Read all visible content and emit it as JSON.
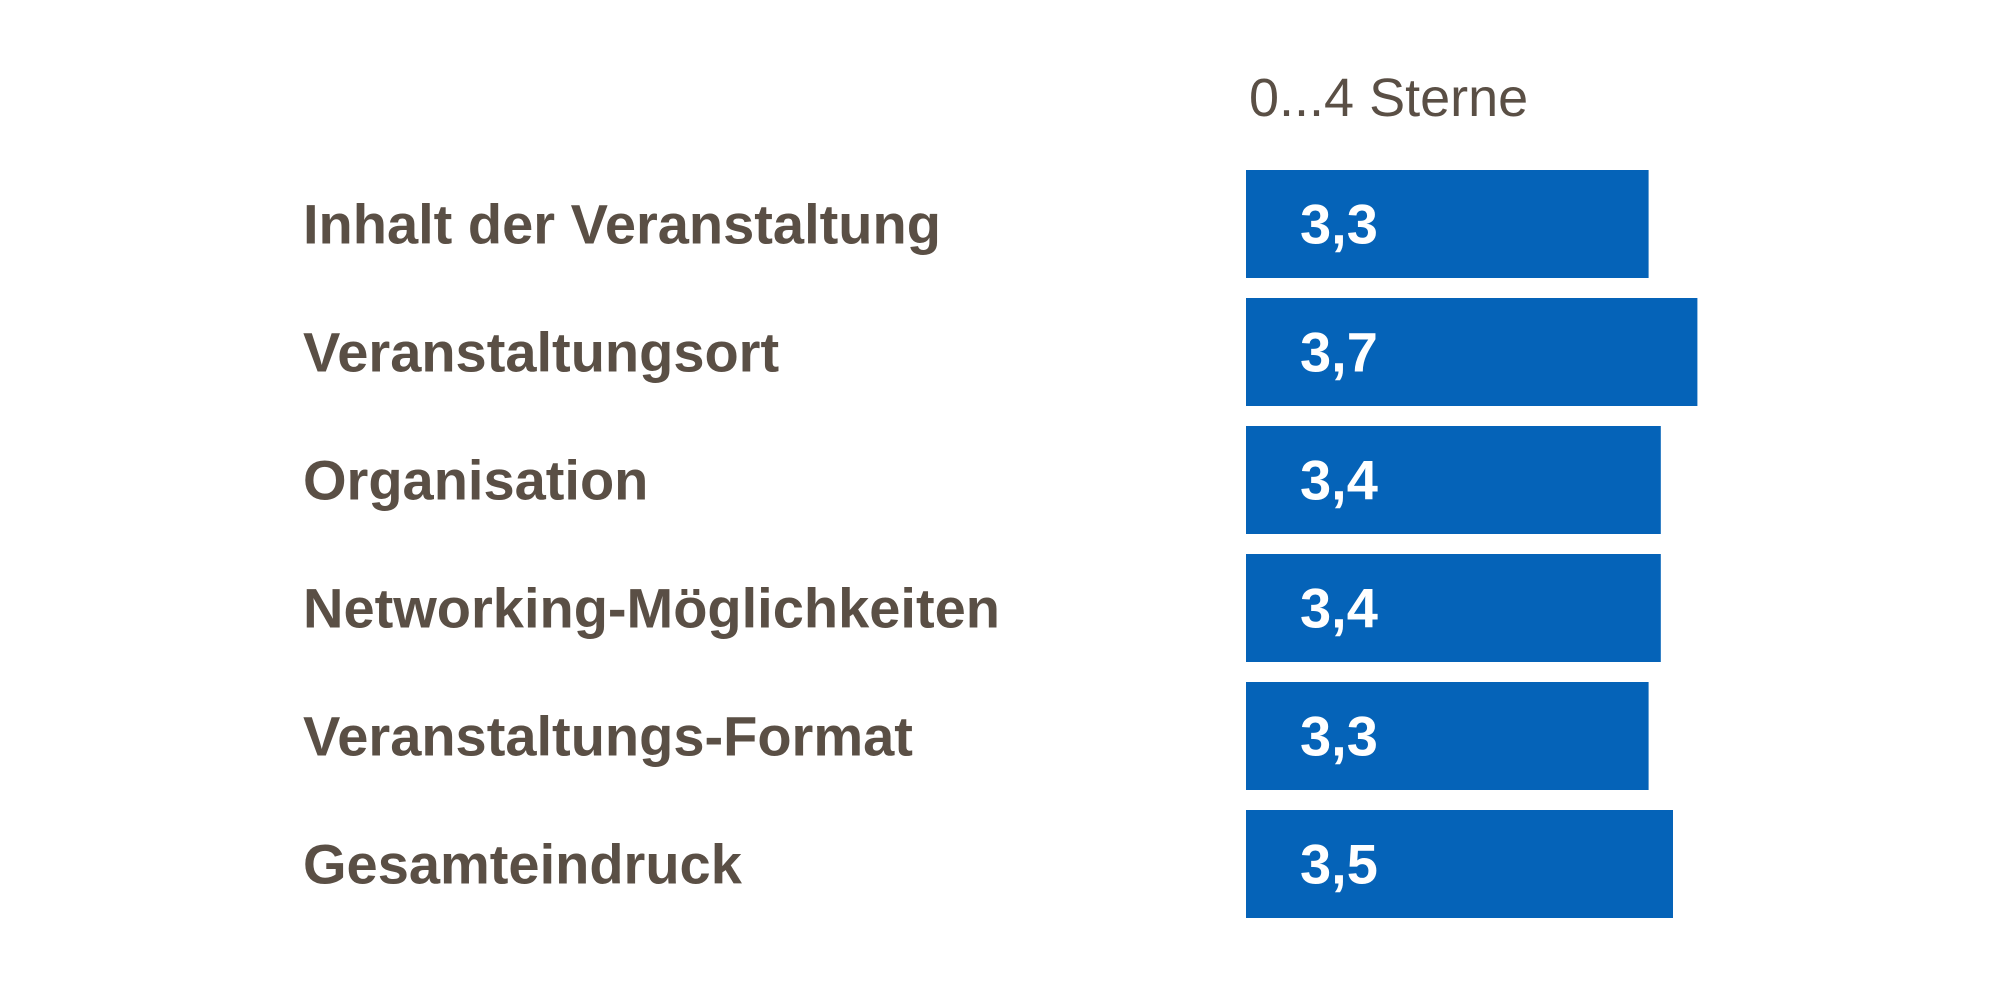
{
  "chart_data": {
    "type": "bar",
    "orientation": "horizontal",
    "axis_caption": "0...4 Sterne",
    "categories": [
      "Inhalt der Veranstaltung",
      "Veranstaltungsort",
      "Organisation",
      "Networking-Möglichkeiten",
      "Veranstaltungs-Format",
      "Gesamteindruck"
    ],
    "values": [
      3.3,
      3.7,
      3.4,
      3.4,
      3.3,
      3.5
    ],
    "data_labels": [
      "3,3",
      "3,7",
      "3,4",
      "3,4",
      "3,3",
      "3,5"
    ],
    "xlim": [
      0,
      4
    ],
    "grid": false,
    "legend": "none",
    "colors": {
      "bar": "#0563b8",
      "label": "#5a4f45",
      "value_label": "#ffffff"
    }
  }
}
